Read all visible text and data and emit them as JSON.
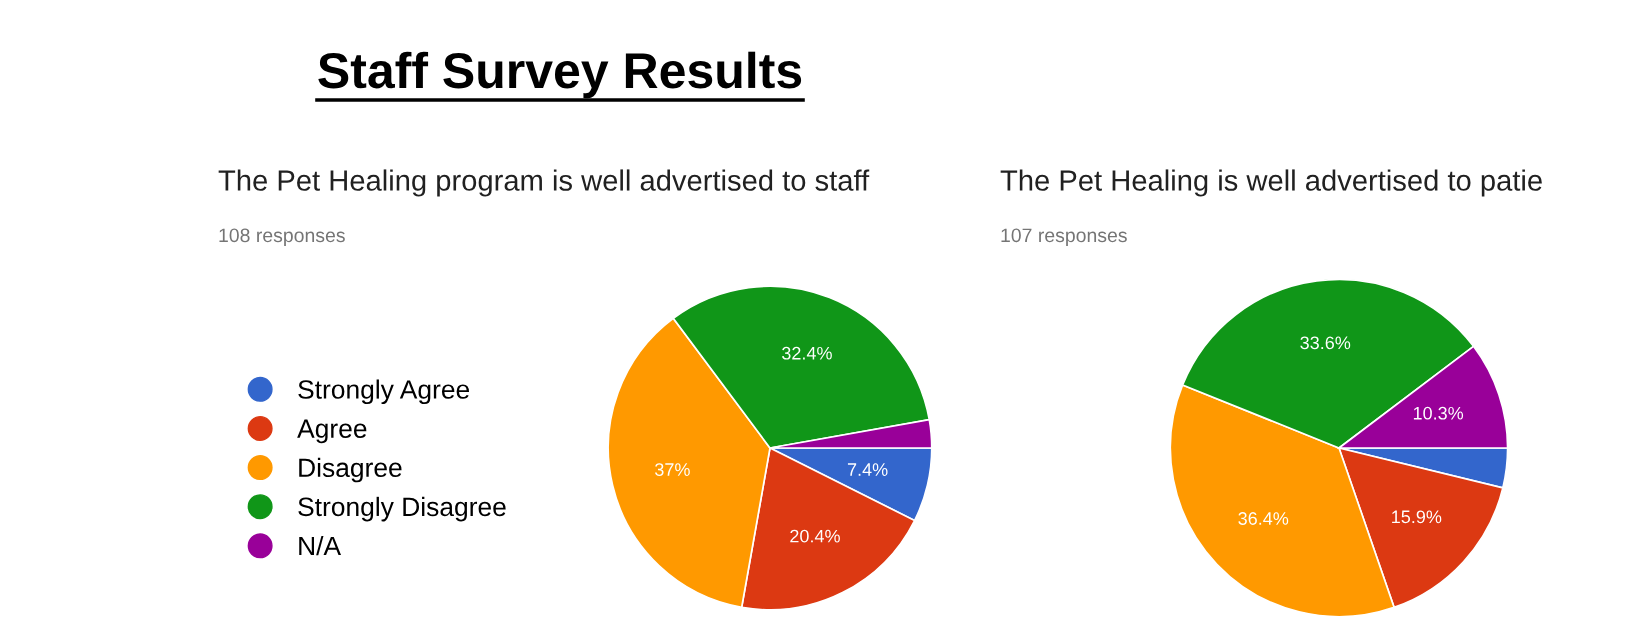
{
  "chart_data": [
    {
      "type": "other",
      "title": "Staff Survey Results"
    },
    {
      "type": "pie",
      "title": "The Pet Healing program is well advertised to staff",
      "subtitle": "108 responses",
      "categories": [
        "Strongly Agree",
        "Agree",
        "Disagree",
        "Strongly Disagree",
        "N/A"
      ],
      "values": [
        7.4,
        20.4,
        37,
        32.4,
        2.8
      ],
      "colors": [
        "#3366cc",
        "#dc3912",
        "#ff9900",
        "#109618",
        "#990099"
      ],
      "value_labels": [
        "7.4%",
        "20.4%",
        "37%",
        "32.4%",
        null
      ],
      "legend": "left"
    },
    {
      "type": "pie",
      "title": "The Pet Healing is well advertised to patie",
      "subtitle": "107 responses",
      "categories": [
        null,
        null,
        null,
        null,
        null
      ],
      "values": [
        3.8,
        15.9,
        36.4,
        33.6,
        10.3
      ],
      "colors": [
        "#3366cc",
        "#dc3912",
        "#ff9900",
        "#109618",
        "#990099"
      ],
      "value_labels": [
        null,
        "15.9%",
        "36.4%",
        "33.6%",
        "10.3%"
      ],
      "legend": false
    }
  ]
}
